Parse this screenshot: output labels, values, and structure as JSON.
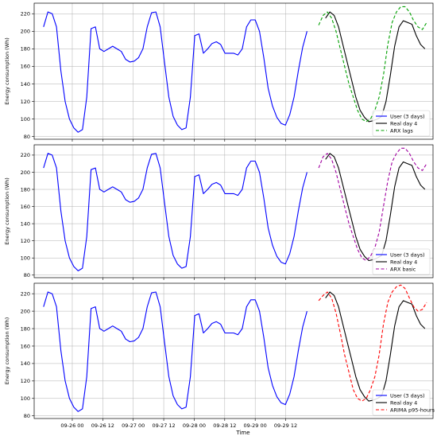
{
  "chart_data": [
    {
      "type": "line",
      "ylabel": "Energy consumption (Wh)",
      "xlabel": "",
      "ylim": [
        77,
        232
      ],
      "yticks": [
        80,
        100,
        120,
        140,
        160,
        180,
        200,
        220
      ],
      "xticks": [
        "09-26 00",
        "09-26 12",
        "09-27 00",
        "09-27 12",
        "09-28 00",
        "09-28 12",
        "09-29 00",
        "09-29 12"
      ],
      "grid": true,
      "legend_position": "lower-right",
      "series": [
        {
          "name": "User (3 days)",
          "color": "#0000ff",
          "dash": "",
          "x": [
            -11.3,
            -9.6,
            -7.9,
            -6.2,
            -4.5,
            -2.8,
            -1.1,
            0.6,
            2.3,
            4.0,
            5.7,
            7.4,
            9.1,
            10.8,
            12.5,
            14.2,
            15.9,
            17.6,
            19.3,
            21.0,
            22.7,
            24.4,
            26.1,
            27.8,
            29.5,
            31.2,
            32.9,
            34.6,
            36.3,
            38.0,
            39.7,
            41.4,
            43.1,
            44.8,
            46.5,
            48.2,
            49.9,
            51.6,
            53.3,
            55.0,
            56.7,
            58.4,
            60.1,
            61.8,
            63.5,
            65.2,
            66.9,
            68.6,
            70.3,
            72.0,
            73.7,
            75.4,
            77.1,
            78.8,
            80.5,
            82.2,
            83.9,
            85.6,
            87.3,
            89.0,
            90.7,
            92.4
          ],
          "values": [
            205,
            222,
            220,
            205,
            155,
            120,
            100,
            90,
            85,
            88,
            125,
            203,
            205,
            180,
            177,
            180,
            183,
            180,
            177,
            168,
            165,
            166,
            170,
            180,
            205,
            221,
            222,
            205,
            165,
            125,
            103,
            93,
            88,
            90,
            125,
            195,
            197,
            175,
            180,
            186,
            188,
            185,
            175,
            175,
            175,
            173,
            180,
            205,
            213,
            213,
            200,
            170,
            135,
            115,
            102,
            95,
            93,
            105,
            125,
            155,
            182,
            200
          ]
        },
        {
          "name": "Real day 4",
          "color": "#000000",
          "dash": "",
          "x": [
            99.7,
            101.4,
            103.1,
            104.8,
            106.5,
            108.2,
            109.9,
            111.6,
            113.3,
            115.0,
            116.7,
            118.4,
            120.1,
            121.8,
            123.5,
            125.2,
            126.9,
            128.6,
            130.3,
            132.0,
            133.7,
            135.4,
            137.1,
            138.8
          ],
          "values": [
            215,
            222,
            218,
            205,
            185,
            165,
            145,
            125,
            110,
            102,
            97,
            98,
            100,
            103,
            120,
            150,
            183,
            205,
            212,
            210,
            208,
            195,
            185,
            180
          ]
        },
        {
          "name": "ARX lags",
          "color": "#00a000",
          "dash": "4,2.5",
          "x": [
            97.0,
            98.7,
            100.4,
            102.1,
            103.8,
            105.5,
            107.2,
            108.9,
            110.6,
            112.3,
            114.0,
            115.7,
            117.4,
            119.1,
            120.8,
            122.5,
            124.2,
            125.9,
            127.6,
            129.3,
            131.0,
            132.7,
            134.4,
            136.1,
            137.8,
            139.5
          ],
          "values": [
            207,
            218,
            222,
            215,
            200,
            180,
            160,
            140,
            125,
            110,
            100,
            97,
            100,
            110,
            125,
            150,
            185,
            210,
            222,
            228,
            228,
            222,
            212,
            205,
            202,
            210
          ]
        }
      ]
    },
    {
      "type": "line",
      "ylabel": "Energy consumption (Wh)",
      "xlabel": "",
      "ylim": [
        77,
        232
      ],
      "yticks": [
        80,
        100,
        120,
        140,
        160,
        180,
        200,
        220
      ],
      "xticks": [
        "09-26 00",
        "09-26 12",
        "09-27 00",
        "09-27 12",
        "09-28 00",
        "09-28 12",
        "09-29 00",
        "09-29 12"
      ],
      "grid": true,
      "legend_position": "lower-right",
      "series": [
        {
          "name": "User (3 days)",
          "color": "#0000ff",
          "dash": "",
          "x": [
            -11.3,
            -9.6,
            -7.9,
            -6.2,
            -4.5,
            -2.8,
            -1.1,
            0.6,
            2.3,
            4.0,
            5.7,
            7.4,
            9.1,
            10.8,
            12.5,
            14.2,
            15.9,
            17.6,
            19.3,
            21.0,
            22.7,
            24.4,
            26.1,
            27.8,
            29.5,
            31.2,
            32.9,
            34.6,
            36.3,
            38.0,
            39.7,
            41.4,
            43.1,
            44.8,
            46.5,
            48.2,
            49.9,
            51.6,
            53.3,
            55.0,
            56.7,
            58.4,
            60.1,
            61.8,
            63.5,
            65.2,
            66.9,
            68.6,
            70.3,
            72.0,
            73.7,
            75.4,
            77.1,
            78.8,
            80.5,
            82.2,
            83.9,
            85.6,
            87.3,
            89.0,
            90.7,
            92.4
          ],
          "values": [
            205,
            222,
            220,
            205,
            155,
            120,
            100,
            90,
            85,
            88,
            125,
            203,
            205,
            180,
            177,
            180,
            183,
            180,
            177,
            168,
            165,
            166,
            170,
            180,
            205,
            221,
            222,
            205,
            165,
            125,
            103,
            93,
            88,
            90,
            125,
            195,
            197,
            175,
            180,
            186,
            188,
            185,
            175,
            175,
            175,
            173,
            180,
            205,
            213,
            213,
            200,
            170,
            135,
            115,
            102,
            95,
            93,
            105,
            125,
            155,
            182,
            200
          ]
        },
        {
          "name": "Real day 4",
          "color": "#000000",
          "dash": "",
          "x": [
            99.7,
            101.4,
            103.1,
            104.8,
            106.5,
            108.2,
            109.9,
            111.6,
            113.3,
            115.0,
            116.7,
            118.4,
            120.1,
            121.8,
            123.5,
            125.2,
            126.9,
            128.6,
            130.3,
            132.0,
            133.7,
            135.4,
            137.1,
            138.8
          ],
          "values": [
            215,
            222,
            218,
            205,
            185,
            165,
            145,
            125,
            110,
            102,
            97,
            98,
            100,
            103,
            120,
            150,
            183,
            205,
            212,
            210,
            208,
            195,
            185,
            180
          ]
        },
        {
          "name": "ARX basic",
          "color": "#a000a0",
          "dash": "4,2.5",
          "x": [
            97.0,
            98.7,
            100.4,
            102.1,
            103.8,
            105.5,
            107.2,
            108.9,
            110.6,
            112.3,
            114.0,
            115.7,
            117.4,
            119.1,
            120.8,
            122.5,
            124.2,
            125.9,
            127.6,
            129.3,
            131.0,
            132.7,
            134.4,
            136.1,
            137.8,
            139.5
          ],
          "values": [
            205,
            218,
            222,
            215,
            200,
            180,
            160,
            140,
            125,
            110,
            100,
            97,
            102,
            112,
            130,
            160,
            190,
            212,
            222,
            228,
            228,
            222,
            212,
            205,
            202,
            210
          ]
        }
      ]
    },
    {
      "type": "line",
      "ylabel": "Energy consumption (Wh)",
      "xlabel": "Time",
      "ylim": [
        77,
        232
      ],
      "yticks": [
        80,
        100,
        120,
        140,
        160,
        180,
        200,
        220
      ],
      "xticks": [
        "09-26 00",
        "09-26 12",
        "09-27 00",
        "09-27 12",
        "09-28 00",
        "09-28 12",
        "09-29 00",
        "09-29 12"
      ],
      "grid": true,
      "legend_position": "lower-right",
      "series": [
        {
          "name": "User (3 days)",
          "color": "#0000ff",
          "dash": "",
          "x": [
            -11.3,
            -9.6,
            -7.9,
            -6.2,
            -4.5,
            -2.8,
            -1.1,
            0.6,
            2.3,
            4.0,
            5.7,
            7.4,
            9.1,
            10.8,
            12.5,
            14.2,
            15.9,
            17.6,
            19.3,
            21.0,
            22.7,
            24.4,
            26.1,
            27.8,
            29.5,
            31.2,
            32.9,
            34.6,
            36.3,
            38.0,
            39.7,
            41.4,
            43.1,
            44.8,
            46.5,
            48.2,
            49.9,
            51.6,
            53.3,
            55.0,
            56.7,
            58.4,
            60.1,
            61.8,
            63.5,
            65.2,
            66.9,
            68.6,
            70.3,
            72.0,
            73.7,
            75.4,
            77.1,
            78.8,
            80.5,
            82.2,
            83.9,
            85.6,
            87.3,
            89.0,
            90.7,
            92.4
          ],
          "values": [
            205,
            222,
            220,
            205,
            155,
            120,
            100,
            90,
            85,
            88,
            125,
            203,
            205,
            180,
            177,
            180,
            183,
            180,
            177,
            168,
            165,
            166,
            170,
            180,
            205,
            221,
            222,
            205,
            165,
            125,
            103,
            93,
            88,
            90,
            125,
            195,
            197,
            175,
            180,
            186,
            188,
            185,
            175,
            175,
            175,
            173,
            180,
            205,
            213,
            213,
            200,
            170,
            135,
            115,
            102,
            95,
            93,
            105,
            125,
            155,
            182,
            200
          ]
        },
        {
          "name": "Real day 4",
          "color": "#000000",
          "dash": "",
          "x": [
            99.7,
            101.4,
            103.1,
            104.8,
            106.5,
            108.2,
            109.9,
            111.6,
            113.3,
            115.0,
            116.7,
            118.4,
            120.1,
            121.8,
            123.5,
            125.2,
            126.9,
            128.6,
            130.3,
            132.0,
            133.7,
            135.4,
            137.1,
            138.8
          ],
          "values": [
            215,
            222,
            218,
            205,
            185,
            165,
            145,
            125,
            110,
            102,
            97,
            98,
            100,
            103,
            120,
            150,
            183,
            205,
            212,
            210,
            208,
            195,
            185,
            180
          ]
        },
        {
          "name": "ARIMA p95-hours",
          "color": "#ff0000",
          "dash": "4,2.5",
          "x": [
            97.0,
            98.7,
            100.4,
            102.1,
            103.8,
            105.5,
            107.2,
            108.9,
            110.6,
            112.3,
            114.0,
            115.7,
            117.4,
            119.1,
            120.8,
            122.5,
            124.2,
            125.9,
            127.6,
            129.3,
            131.0,
            132.7,
            134.4,
            136.1,
            137.8,
            139.5
          ],
          "values": [
            212,
            218,
            222,
            215,
            198,
            175,
            150,
            130,
            110,
            100,
            97,
            100,
            110,
            125,
            150,
            185,
            210,
            222,
            228,
            230,
            226,
            215,
            205,
            200,
            202,
            210
          ]
        }
      ]
    }
  ]
}
